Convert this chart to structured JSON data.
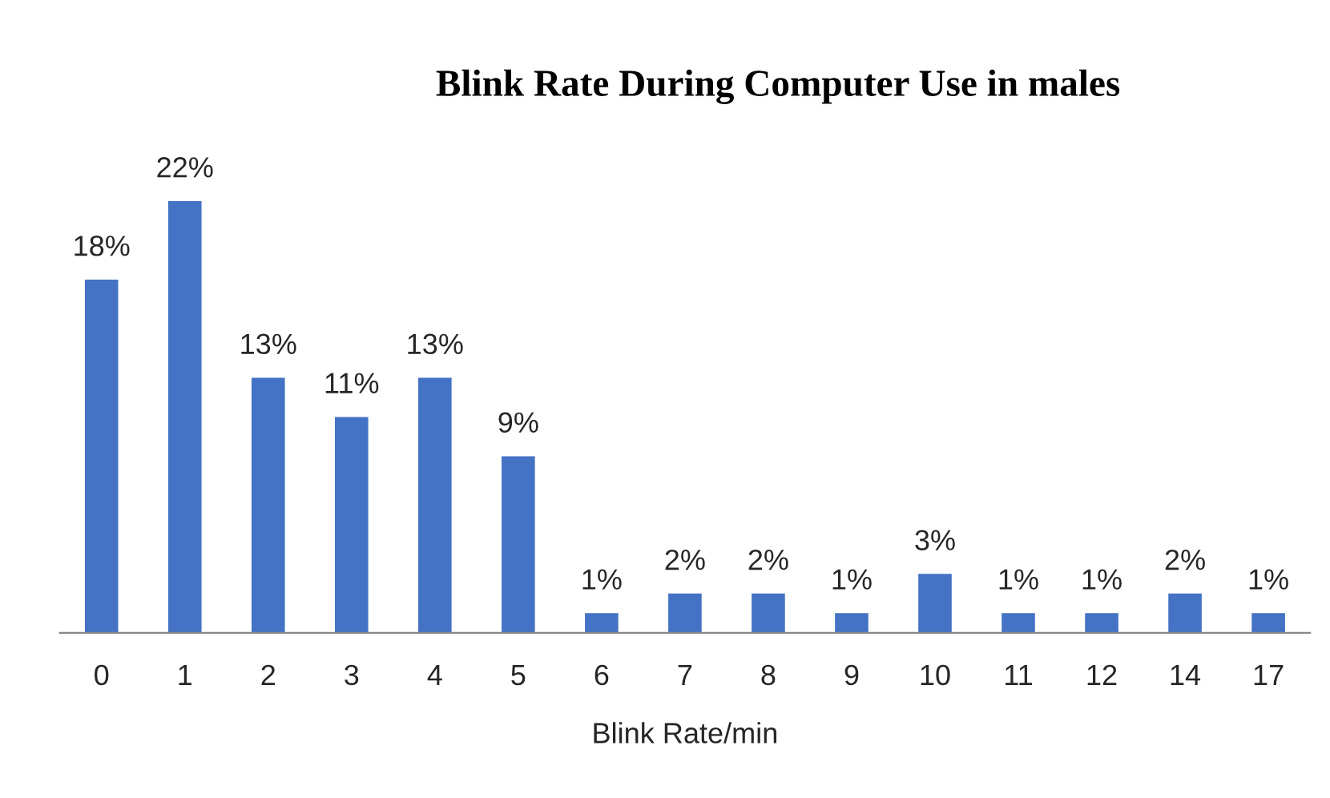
{
  "chart_data": {
    "type": "bar",
    "title": "Blink Rate During Computer Use in males",
    "xlabel": "Blink Rate/min",
    "categories": [
      "0",
      "1",
      "2",
      "3",
      "4",
      "5",
      "6",
      "7",
      "8",
      "9",
      "10",
      "11",
      "12",
      "14",
      "17"
    ],
    "values": [
      18,
      22,
      13,
      11,
      13,
      9,
      1,
      2,
      2,
      1,
      3,
      1,
      1,
      2,
      1
    ],
    "value_labels": [
      "18%",
      "22%",
      "13%",
      "11%",
      "13%",
      "9%",
      "1%",
      "2%",
      "2%",
      "1%",
      "3%",
      "1%",
      "1%",
      "2%",
      "1%"
    ],
    "color": "#4472c4",
    "grid": false,
    "legend": false
  }
}
